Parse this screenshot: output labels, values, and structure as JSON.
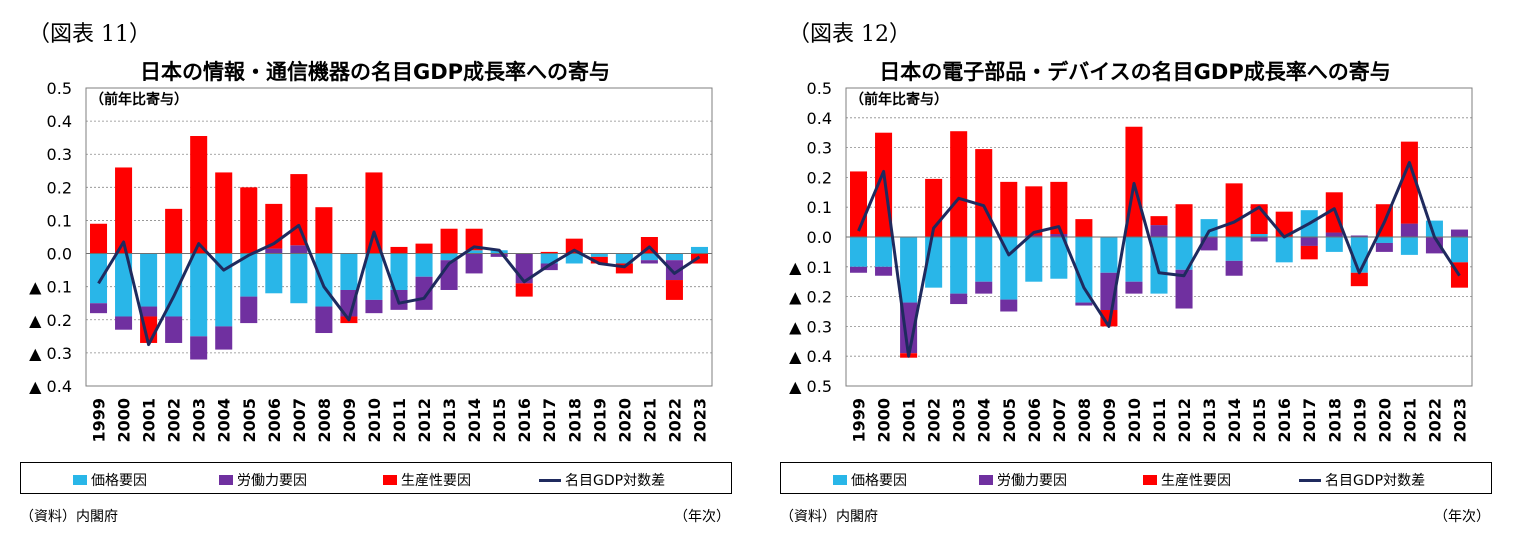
{
  "colors": {
    "price": "#29b6e8",
    "labor": "#7030a0",
    "productivity": "#ff0000",
    "line": "#1f2a5e"
  },
  "chart_data": [
    {
      "type": "bar",
      "figure_label": "（図表 11）",
      "title": "日本の情報・通信機器の名目GDP成長率への寄与",
      "ylabel": "（前年比寄与）",
      "xlabel": "（年次）",
      "source": "（資料）内閣府",
      "ylim": [
        -0.4,
        0.5
      ],
      "ytick_values": [
        0.5,
        0.4,
        0.3,
        0.2,
        0.1,
        0.0,
        -0.1,
        -0.2,
        -0.3,
        -0.4
      ],
      "ytick_labels": [
        "0.5",
        "0.4",
        "0.3",
        "0.2",
        "0.1",
        "0.0",
        "▲ 0.1",
        "▲ 0.2",
        "▲ 0.3",
        "▲ 0.4"
      ],
      "categories": [
        "1999",
        "2000",
        "2001",
        "2002",
        "2003",
        "2004",
        "2005",
        "2006",
        "2007",
        "2008",
        "2009",
        "2010",
        "2011",
        "2012",
        "2013",
        "2014",
        "2015",
        "2016",
        "2017",
        "2018",
        "2019",
        "2020",
        "2021",
        "2022",
        "2023"
      ],
      "stacked": true,
      "legend": [
        "価格要因",
        "労働力要因",
        "生産性要因",
        "名目GDP対数差"
      ],
      "series": [
        {
          "name": "価格要因",
          "values": [
            -0.15,
            -0.19,
            -0.16,
            -0.19,
            -0.25,
            -0.22,
            -0.13,
            -0.12,
            -0.15,
            -0.16,
            -0.11,
            -0.14,
            -0.11,
            -0.07,
            -0.02,
            0.01,
            0.01,
            0.0,
            -0.03,
            -0.03,
            -0.01,
            -0.03,
            -0.02,
            -0.02,
            0.02
          ]
        },
        {
          "name": "労働力要因",
          "values": [
            -0.03,
            -0.04,
            -0.03,
            -0.08,
            -0.07,
            -0.07,
            -0.08,
            0.015,
            0.025,
            -0.08,
            -0.08,
            -0.04,
            -0.06,
            -0.1,
            -0.09,
            -0.06,
            -0.01,
            -0.09,
            -0.02,
            0.0,
            0.0,
            0.0,
            -0.01,
            -0.06,
            0.0
          ]
        },
        {
          "name": "生産性要因",
          "values": [
            0.09,
            0.26,
            -0.08,
            0.135,
            0.355,
            0.245,
            0.2,
            0.135,
            0.215,
            0.14,
            -0.02,
            0.245,
            0.02,
            0.03,
            0.075,
            0.065,
            0.0,
            -0.04,
            0.005,
            0.045,
            -0.02,
            -0.03,
            0.05,
            -0.06,
            -0.03
          ]
        },
        {
          "name": "名目GDP対数差",
          "type": "line",
          "values": [
            -0.09,
            0.035,
            -0.275,
            -0.13,
            0.03,
            -0.05,
            -0.005,
            0.03,
            0.085,
            -0.1,
            -0.2,
            0.065,
            -0.15,
            -0.135,
            -0.03,
            0.02,
            0.01,
            -0.085,
            -0.035,
            0.01,
            -0.03,
            -0.04,
            0.02,
            -0.06,
            -0.01
          ]
        }
      ]
    },
    {
      "type": "bar",
      "figure_label": "（図表 12）",
      "title": "日本の電子部品・デバイスの名目GDP成長率への寄与",
      "ylabel": "（前年比寄与）",
      "xlabel": "（年次）",
      "source": "（資料）内閣府",
      "ylim": [
        -0.5,
        0.5
      ],
      "ytick_values": [
        0.5,
        0.4,
        0.3,
        0.2,
        0.1,
        0.0,
        -0.1,
        -0.2,
        -0.3,
        -0.4,
        -0.5
      ],
      "ytick_labels": [
        "0.5",
        "0.4",
        "0.3",
        "0.2",
        "0.1",
        "0.0",
        "▲ 0.1",
        "▲ 0.2",
        "▲ 0.3",
        "▲ 0.4",
        "▲ 0.5"
      ],
      "categories": [
        "1999",
        "2000",
        "2001",
        "2002",
        "2003",
        "2004",
        "2005",
        "2006",
        "2007",
        "2008",
        "2009",
        "2010",
        "2011",
        "2012",
        "2013",
        "2014",
        "2015",
        "2016",
        "2017",
        "2018",
        "2019",
        "2020",
        "2021",
        "2022",
        "2023"
      ],
      "stacked": true,
      "legend": [
        "価格要因",
        "労働力要因",
        "生産性要因",
        "名目GDP対数差"
      ],
      "series": [
        {
          "name": "価格要因",
          "values": [
            -0.1,
            -0.1,
            -0.22,
            -0.17,
            -0.19,
            -0.15,
            -0.21,
            -0.15,
            -0.14,
            -0.22,
            -0.12,
            -0.15,
            -0.19,
            -0.11,
            0.06,
            -0.08,
            0.01,
            -0.085,
            0.09,
            -0.05,
            -0.12,
            -0.02,
            -0.06,
            0.055,
            -0.085
          ]
        },
        {
          "name": "労働力要因",
          "values": [
            -0.02,
            -0.03,
            -0.17,
            0.0,
            -0.035,
            -0.04,
            -0.04,
            0.005,
            0.01,
            -0.01,
            -0.125,
            -0.04,
            0.04,
            -0.13,
            -0.045,
            -0.05,
            -0.015,
            0.0,
            -0.03,
            0.015,
            0.005,
            -0.03,
            0.045,
            -0.055,
            0.025
          ]
        },
        {
          "name": "生産性要因",
          "values": [
            0.22,
            0.35,
            -0.015,
            0.195,
            0.355,
            0.295,
            0.185,
            0.165,
            0.175,
            0.06,
            -0.055,
            0.37,
            0.03,
            0.11,
            0.0,
            0.18,
            0.1,
            0.085,
            -0.045,
            0.135,
            -0.045,
            0.11,
            0.275,
            0.0,
            -0.085
          ]
        },
        {
          "name": "名目GDP対数差",
          "type": "line",
          "values": [
            0.02,
            0.22,
            -0.4,
            0.03,
            0.13,
            0.105,
            -0.06,
            0.015,
            0.035,
            -0.17,
            -0.3,
            0.18,
            -0.12,
            -0.13,
            0.02,
            0.05,
            0.1,
            0.0,
            0.045,
            0.095,
            -0.12,
            0.05,
            0.25,
            0.0,
            -0.13
          ]
        }
      ]
    }
  ]
}
